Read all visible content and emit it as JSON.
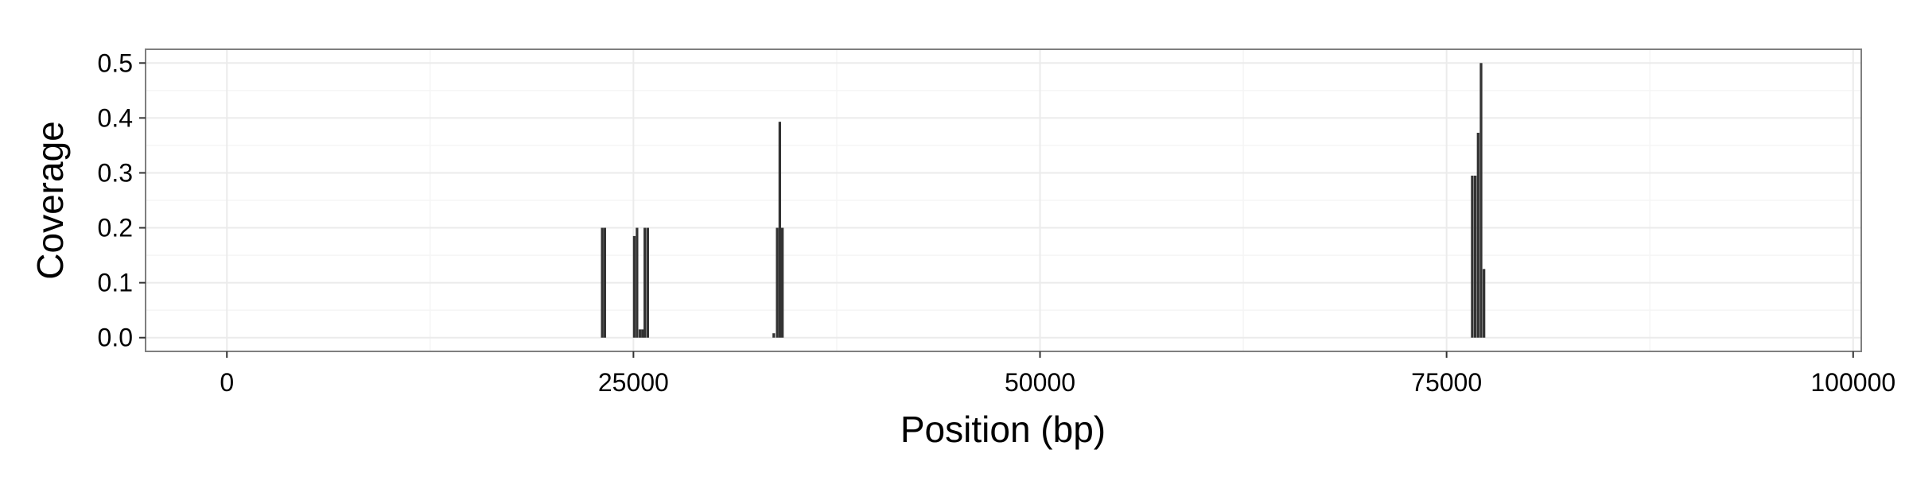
{
  "chart_data": {
    "type": "bar",
    "title": "",
    "xlabel": "Position (bp)",
    "ylabel": "Coverage",
    "xlim": [
      -5000,
      100500
    ],
    "ylim": [
      -0.025,
      0.525
    ],
    "xticks": [
      0,
      25000,
      50000,
      75000,
      100000
    ],
    "xtick_labels": [
      "0",
      "25000",
      "50000",
      "75000",
      "100000"
    ],
    "yticks": [
      0.0,
      0.1,
      0.2,
      0.3,
      0.4,
      0.5
    ],
    "ytick_labels": [
      "0.0",
      "0.1",
      "0.2",
      "0.3",
      "0.4",
      "0.5"
    ],
    "grid": true,
    "bar_color": "#333333",
    "bars": [
      {
        "x": 23080,
        "y": 0.2
      },
      {
        "x": 23240,
        "y": 0.2
      },
      {
        "x": 25050,
        "y": 0.185
      },
      {
        "x": 25220,
        "y": 0.2
      },
      {
        "x": 25400,
        "y": 0.015
      },
      {
        "x": 25560,
        "y": 0.015
      },
      {
        "x": 25700,
        "y": 0.2
      },
      {
        "x": 25880,
        "y": 0.2
      },
      {
        "x": 33630,
        "y": 0.008
      },
      {
        "x": 33840,
        "y": 0.2
      },
      {
        "x": 34000,
        "y": 0.393
      },
      {
        "x": 34160,
        "y": 0.2
      },
      {
        "x": 76580,
        "y": 0.295
      },
      {
        "x": 76760,
        "y": 0.295
      },
      {
        "x": 76940,
        "y": 0.373
      },
      {
        "x": 77120,
        "y": 0.5
      },
      {
        "x": 77300,
        "y": 0.125
      }
    ]
  },
  "style": {
    "panel_border": "#7f7f7f",
    "grid_major": "#ebebeb",
    "grid_minor": "#f5f5f5",
    "tick_color": "#333333"
  }
}
